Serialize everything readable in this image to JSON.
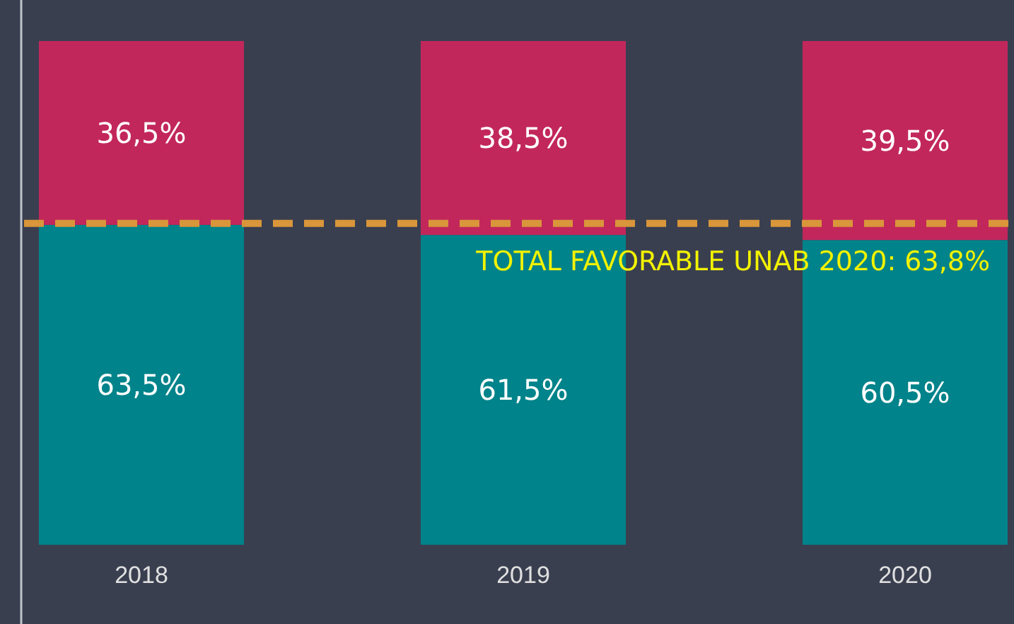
{
  "chart_data": {
    "type": "bar",
    "stacked": true,
    "categories": [
      "2018",
      "2019",
      "2020"
    ],
    "series": [
      {
        "color": "#00838a",
        "values": [
          63.5,
          61.5,
          60.5
        ],
        "value_labels": [
          "63,5%",
          "61,5%",
          "60,5%"
        ]
      },
      {
        "color": "#c2275c",
        "values": [
          36.5,
          38.5,
          39.5
        ],
        "value_labels": [
          "36,5%",
          "38,5%",
          "39,5%"
        ]
      }
    ],
    "ylim": [
      0,
      100
    ],
    "tick_labels": "x",
    "ref_lines": [
      {
        "axis": "y",
        "value": 63.8,
        "label": "TOTAL FAVORABLE UNAB 2020: 63,8%",
        "color": "#d9963a",
        "line_style": "dashed"
      }
    ]
  }
}
